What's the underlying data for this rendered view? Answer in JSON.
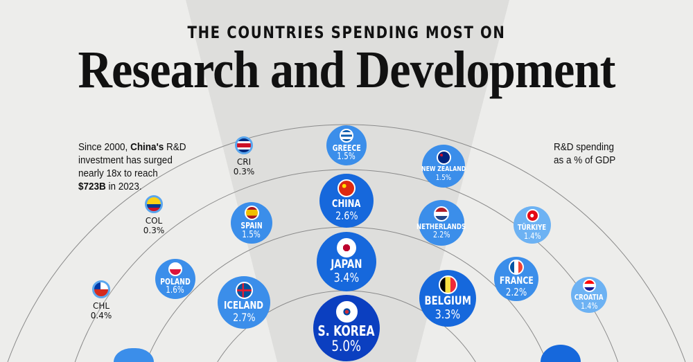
{
  "header": {
    "kicker": "THE COUNTRIES SPENDING MOST ON",
    "title": "Research and Development"
  },
  "left_note": {
    "line1": "Since 2000, ",
    "highlight1": "China's",
    "line1b": " R&D",
    "line2": "investment has surged",
    "line3": "nearly 18x to reach",
    "highlight2": "$723B",
    "line4b": " in 2023."
  },
  "legend_note": {
    "line1": "R&D spending",
    "line2": "as a % of GDP"
  },
  "colors": {
    "background": "#ededeb",
    "beam": "#dcdcda",
    "deep": "#0b3fc0",
    "strong": "#1668dc",
    "mid": "#3b8eea",
    "light": "#6db2f3"
  },
  "countries": [
    {
      "name": "GREECE",
      "value": "1.5%",
      "flag": "greece-flag"
    },
    {
      "name": "NEW ZEALAND",
      "value": "1.5%",
      "flag": "new-zealand-flag"
    },
    {
      "name": "CHINA",
      "value": "2.6%",
      "flag": "china-flag"
    },
    {
      "name": "SPAIN",
      "value": "1.5%",
      "flag": "spain-flag"
    },
    {
      "name": "NETHERLANDS",
      "value": "2.2%",
      "flag": "netherlands-flag"
    },
    {
      "name": "TÜRKIYE",
      "value": "1.4%",
      "flag": "turkiye-flag"
    },
    {
      "name": "JAPAN",
      "value": "3.4%",
      "flag": "japan-flag"
    },
    {
      "name": "POLAND",
      "value": "1.6%",
      "flag": "poland-flag"
    },
    {
      "name": "FRANCE",
      "value": "2.2%",
      "flag": "france-flag"
    },
    {
      "name": "ICELAND",
      "value": "2.7%",
      "flag": "iceland-flag"
    },
    {
      "name": "BELGIUM",
      "value": "3.3%",
      "flag": "belgium-flag"
    },
    {
      "name": "CROATIA",
      "value": "1.4%",
      "flag": "croatia-flag"
    },
    {
      "name": "S. KOREA",
      "value": "5.0%",
      "flag": "south-korea-flag"
    }
  ],
  "small_countries": [
    {
      "name": "CRI",
      "value": "0.3%"
    },
    {
      "name": "COL",
      "value": "0.3%"
    },
    {
      "name": "CHL",
      "value": "0.4%"
    }
  ]
}
